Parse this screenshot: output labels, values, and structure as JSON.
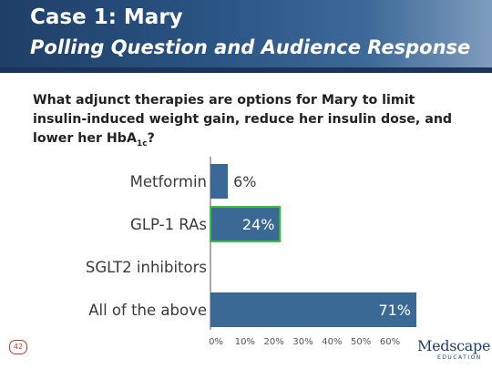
{
  "slide": {
    "title": "Case 1: Mary",
    "subtitle": "Polling Question and Audience Response",
    "question_main": "What adjunct therapies are options for Mary to limit insulin-induced weight gain, reduce her insulin dose, and lower her HbA",
    "question_sub": "1c",
    "question_end": "?",
    "slide_number": "42",
    "logo": {
      "word": "Medscape",
      "sub": "EDUCATION"
    }
  },
  "colors": {
    "header_start": "#1f3f68",
    "header_end": "#7f9dbd",
    "bar": "#3b6996",
    "highlight_border": "#3fbf3f",
    "logo": "#1e3f6e",
    "slide_number": "#c0392b"
  },
  "chart_data": {
    "type": "bar",
    "orientation": "horizontal",
    "categories": [
      "Metformin",
      "GLP-1 RAs",
      "SGLT2 inhibitors",
      "All of the above"
    ],
    "values": [
      6,
      24,
      0,
      71
    ],
    "value_labels": [
      "6%",
      "24%",
      "",
      "71%"
    ],
    "highlighted_category": "GLP-1 RAs",
    "xlim": [
      0,
      65
    ],
    "xticks": [
      0,
      10,
      20,
      30,
      40,
      50,
      60
    ],
    "xtick_labels": [
      "0%",
      "10%",
      "20%",
      "30%",
      "40%",
      "50%",
      "60%"
    ],
    "grid": false,
    "legend": "none",
    "title": "",
    "xlabel": "",
    "ylabel": ""
  }
}
